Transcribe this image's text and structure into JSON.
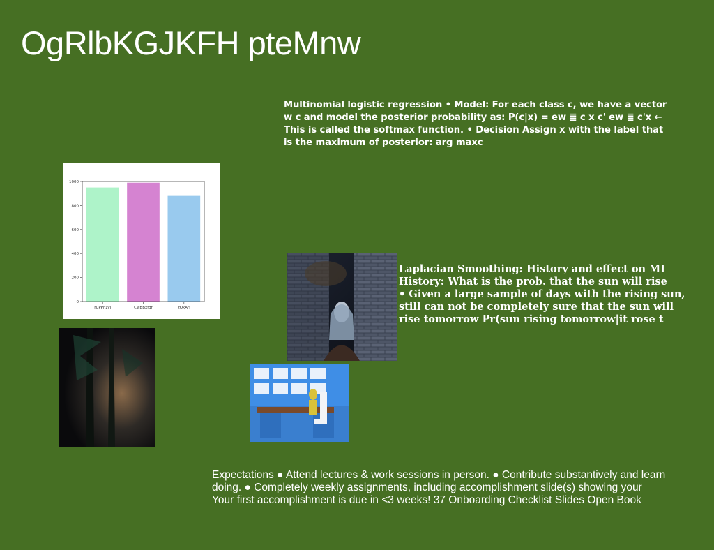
{
  "slide": {
    "title": "OgRlbKGJKFH pteMnw",
    "text_block_1": "Multinomial logistic regression • Model: For each class c, we have a vector w c and model the posterior probability as: P(c|x) = ew ≣ c x c' ew ≣ c'x ← This is called the softmax function. • Decision Assign x with the label that is the maximum of posterior: arg maxc",
    "text_block_2": "Laplacian Smoothing: History and effect on ML\nHistory: What is the prob. that the sun will rise\n• Given a large sample of days with the rising sun,\nstill can not be completely sure that the sun will\nrise tomorrow Pr(sun rising tomorrow|it rose t",
    "text_block_3": "Expectations ● Attend lectures & work sessions in person. ● Contribute substantively and learn\ndoing. ● Completely weekly assignments, including accomplishment slide(s) showing your\nYour first accomplishment is due in <3 weeks! 37 Onboarding Checklist Slides Open Book"
  },
  "chart_data": {
    "type": "bar",
    "categories": [
      "rCPPhzvl",
      "CwBBxfdr",
      "zOkArj"
    ],
    "values": [
      950,
      990,
      880
    ],
    "colors": [
      "#aef3c9",
      "#d583d1",
      "#99caee"
    ],
    "ylim": [
      0,
      1000
    ],
    "yticks": [
      0,
      200,
      400,
      600,
      800,
      1000
    ],
    "grid": false
  },
  "images": {
    "forest": "dark forest photo",
    "woman": "woman beside brick wall",
    "desk": "blue shelving desk with yellow figure"
  }
}
